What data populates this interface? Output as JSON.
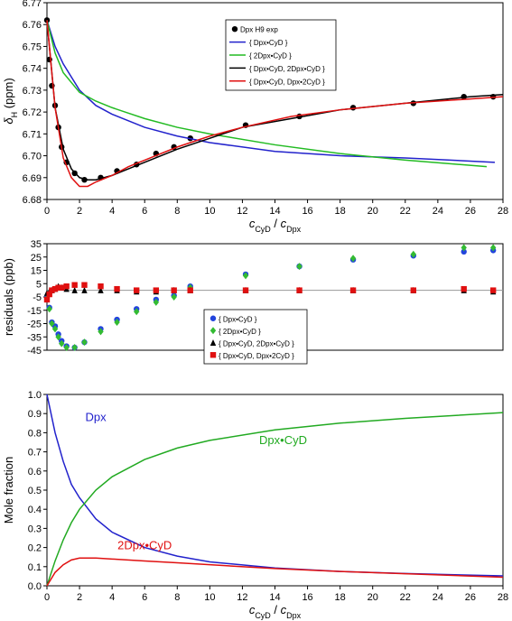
{
  "chart_data": [
    {
      "type": "line",
      "xlabel": [
        {
          "text": "c",
          "italic": true
        },
        {
          "text": "CyD",
          "sub": true
        },
        {
          "text": " / "
        },
        {
          "text": "c",
          "italic": true
        },
        {
          "text": "Dpx",
          "sub": true
        }
      ],
      "ylabel": [
        {
          "text": "δ",
          "italic": true
        },
        {
          "text": "H",
          "sub": true
        },
        {
          "text": " (ppm)"
        }
      ],
      "xlim": [
        0,
        28
      ],
      "xticks": [
        0,
        2,
        4,
        6,
        8,
        10,
        12,
        14,
        16,
        18,
        20,
        22,
        24,
        26,
        28
      ],
      "ylim": [
        6.68,
        6.77
      ],
      "yticks": [
        6.68,
        6.69,
        {
          "value": 6.7,
          "label": "6.70"
        },
        6.71,
        6.72,
        6.73,
        6.74,
        6.75,
        6.76,
        6.77
      ],
      "series": [
        {
          "name": "Dpx H9 exp",
          "color": "#000000",
          "marker": "circle",
          "x": [
            0,
            0.15,
            0.3,
            0.5,
            0.7,
            0.9,
            1.2,
            1.7,
            2.3,
            3.3,
            4.3,
            5.5,
            6.7,
            7.8,
            8.8,
            12.2,
            15.5,
            18.8,
            22.5,
            25.6,
            27.4
          ],
          "values": [
            6.762,
            6.744,
            6.732,
            6.723,
            6.713,
            6.704,
            6.697,
            6.692,
            6.689,
            6.69,
            6.693,
            6.696,
            6.701,
            6.704,
            6.708,
            6.714,
            6.718,
            6.722,
            6.724,
            6.727,
            6.727
          ]
        },
        {
          "name": "{ Dpx•CyD }",
          "color": "#2222cc",
          "x": [
            0,
            0.5,
            1,
            2,
            3,
            4,
            6,
            8,
            10,
            14,
            18,
            22,
            27.5
          ],
          "values": [
            6.762,
            6.75,
            6.742,
            6.73,
            6.723,
            6.719,
            6.713,
            6.709,
            6.706,
            6.702,
            6.7,
            6.699,
            6.697
          ]
        },
        {
          "name": "{ 2Dpx•CyD }",
          "color": "#22bb22",
          "x": [
            0,
            0.5,
            1,
            2,
            3,
            4,
            6,
            8,
            10,
            14,
            18,
            22,
            27
          ],
          "values": [
            6.762,
            6.747,
            6.738,
            6.729,
            6.725,
            6.722,
            6.717,
            6.713,
            6.71,
            6.705,
            6.701,
            6.698,
            6.695
          ]
        },
        {
          "name": "{ Dpx•CyD, 2Dpx•CyD }",
          "color": "#000000",
          "x": [
            0,
            0.5,
            1,
            1.5,
            2,
            2.5,
            3,
            4,
            5,
            6,
            8,
            10,
            12,
            15,
            18,
            22,
            26,
            28
          ],
          "values": [
            6.762,
            6.722,
            6.703,
            6.694,
            6.69,
            6.689,
            6.689,
            6.691,
            6.694,
            6.697,
            6.703,
            6.708,
            6.713,
            6.717,
            6.721,
            6.724,
            6.727,
            6.728
          ]
        },
        {
          "name": "{ Dpx•CyD, Dpx•2CyD }",
          "color": "#e01010",
          "x": [
            0,
            0.5,
            1,
            1.5,
            2,
            2.5,
            3,
            4,
            5,
            6,
            8,
            10,
            12,
            15,
            18,
            22,
            26,
            28
          ],
          "values": [
            6.762,
            6.722,
            6.699,
            6.69,
            6.686,
            6.686,
            6.688,
            6.691,
            6.695,
            6.698,
            6.704,
            6.709,
            6.713,
            6.718,
            6.721,
            6.724,
            6.726,
            6.727
          ]
        }
      ]
    },
    {
      "type": "scatter",
      "ylabel": [
        {
          "text": "residuals (ppb)"
        }
      ],
      "xlim": [
        0,
        28
      ],
      "ylim": [
        -45,
        35
      ],
      "yticks": [
        35,
        25,
        15,
        5,
        -5,
        -15,
        -25,
        -35,
        -45
      ],
      "hline": 0,
      "series": [
        {
          "name": "{ Dpx•CyD }",
          "color": "#2244dd",
          "marker": "circle",
          "x": [
            0,
            0.15,
            0.3,
            0.5,
            0.7,
            0.9,
            1.2,
            1.7,
            2.3,
            3.3,
            4.3,
            5.5,
            6.7,
            7.8,
            8.8,
            12.2,
            15.5,
            18.8,
            22.5,
            25.6,
            27.4
          ],
          "values": [
            -5,
            -13,
            -24,
            -27,
            -33,
            -38,
            -42,
            -43,
            -39,
            -29,
            -22,
            -14,
            -7,
            -4,
            3,
            12,
            18,
            23,
            26,
            29,
            30
          ]
        },
        {
          "name": "{ 2Dpx•CyD }",
          "color": "#33bb33",
          "marker": "diamond",
          "x": [
            0,
            0.15,
            0.3,
            0.5,
            0.7,
            0.9,
            1.2,
            1.7,
            2.3,
            3.3,
            4.3,
            5.5,
            6.7,
            7.8,
            8.8,
            12.2,
            15.5,
            18.8,
            22.5,
            25.6,
            27.4
          ],
          "values": [
            -6,
            -14,
            -25,
            -29,
            -35,
            -40,
            -43,
            -43,
            -39,
            -31,
            -24,
            -16,
            -9,
            -5,
            2,
            11,
            18,
            24,
            27,
            32,
            32
          ]
        },
        {
          "name": "{ Dpx•CyD, 2Dpx•CyD }",
          "color": "#000000",
          "marker": "triangle",
          "x": [
            0,
            0.15,
            0.3,
            0.5,
            0.7,
            0.9,
            1.2,
            1.7,
            2.3,
            3.3,
            4.3,
            5.5,
            6.7,
            7.8,
            8.8,
            12.2,
            15.5,
            18.8,
            22.5,
            25.6,
            27.4
          ],
          "values": [
            -2,
            -1,
            0,
            1,
            3,
            2,
            1,
            0,
            0,
            0,
            0,
            -1,
            -1,
            0,
            0,
            0,
            0,
            0,
            0,
            0,
            -1
          ]
        },
        {
          "name": "{ Dpx•CyD, Dpx•2CyD }",
          "color": "#e01010",
          "marker": "square",
          "x": [
            0,
            0.15,
            0.3,
            0.5,
            0.7,
            0.9,
            1.2,
            1.7,
            2.3,
            3.3,
            4.3,
            5.5,
            6.7,
            7.8,
            8.8,
            12.2,
            15.5,
            18.8,
            22.5,
            25.6,
            27.4
          ],
          "values": [
            -7,
            -3,
            0,
            1,
            2,
            2,
            3,
            4,
            4,
            3,
            1,
            0,
            0,
            0,
            0,
            0,
            0,
            0,
            0,
            1,
            0
          ]
        }
      ]
    },
    {
      "type": "line",
      "xlabel": [
        {
          "text": "c",
          "italic": true
        },
        {
          "text": "CyD",
          "sub": true
        },
        {
          "text": " / "
        },
        {
          "text": "c",
          "italic": true
        },
        {
          "text": "Dpx",
          "sub": true
        }
      ],
      "ylabel": [
        {
          "text": "Mole fraction"
        }
      ],
      "xlim": [
        0,
        28
      ],
      "xticks": [
        0,
        2,
        4,
        6,
        8,
        10,
        12,
        14,
        16,
        18,
        20,
        22,
        24,
        26,
        28
      ],
      "ylim": [
        0,
        1
      ],
      "yticks": [
        {
          "value": 0,
          "label": "0.0"
        },
        0.1,
        0.2,
        0.3,
        0.4,
        0.5,
        0.6,
        0.7,
        0.8,
        0.9,
        {
          "value": 1,
          "label": "1.0"
        }
      ],
      "series": [
        {
          "name": "Dpx",
          "color": "#2222cc",
          "x": [
            0,
            0.5,
            1,
            1.5,
            2,
            3,
            4,
            6,
            8,
            10,
            14,
            18,
            22,
            28
          ],
          "values": [
            1,
            0.8,
            0.65,
            0.53,
            0.46,
            0.35,
            0.28,
            0.2,
            0.155,
            0.125,
            0.093,
            0.075,
            0.064,
            0.052
          ]
        },
        {
          "name": "Dpx•CyD",
          "color": "#22aa22",
          "x": [
            0,
            0.5,
            1,
            1.5,
            2,
            3,
            4,
            6,
            8,
            10,
            14,
            18,
            22,
            28
          ],
          "values": [
            0,
            0.13,
            0.24,
            0.33,
            0.4,
            0.5,
            0.57,
            0.66,
            0.72,
            0.76,
            0.815,
            0.85,
            0.875,
            0.905
          ]
        },
        {
          "name": "2Dpx•CyD",
          "color": "#e01010",
          "x": [
            0,
            0.5,
            1,
            1.5,
            2,
            3,
            4,
            6,
            8,
            10,
            14,
            18,
            22,
            28
          ],
          "values": [
            0,
            0.07,
            0.11,
            0.135,
            0.145,
            0.145,
            0.14,
            0.13,
            0.12,
            0.11,
            0.09,
            0.075,
            0.063,
            0.045
          ]
        }
      ]
    }
  ]
}
